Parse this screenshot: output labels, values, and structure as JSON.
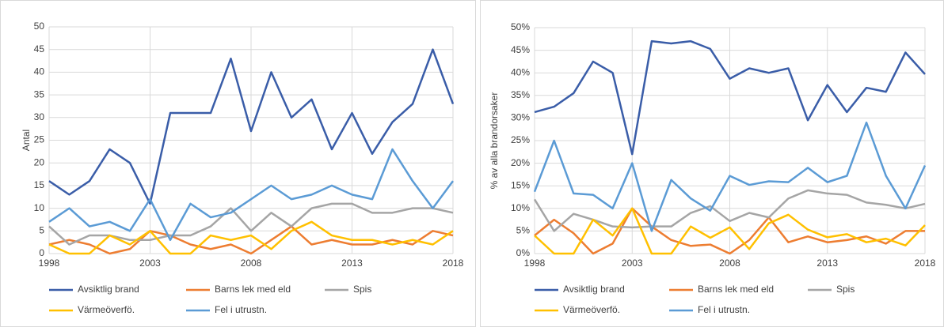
{
  "chart_data": [
    {
      "type": "line",
      "y_label": "Antal",
      "x": [
        1998,
        1999,
        2000,
        2001,
        2002,
        2003,
        2004,
        2005,
        2006,
        2007,
        2008,
        2009,
        2010,
        2011,
        2012,
        2013,
        2014,
        2015,
        2016,
        2017,
        2018
      ],
      "xlim": [
        1998,
        2018
      ],
      "xticks": [
        1998,
        2003,
        2008,
        2013,
        2018
      ],
      "ylim": [
        0,
        50
      ],
      "yticks": [
        0,
        5,
        10,
        15,
        20,
        25,
        30,
        35,
        40,
        45,
        50
      ],
      "grid": true,
      "series": [
        {
          "name": "Avsiktlig brand",
          "color": "#3a5da8",
          "values": [
            16,
            13,
            16,
            23,
            20,
            11,
            31,
            31,
            31,
            43,
            27,
            40,
            30,
            34,
            23,
            31,
            22,
            29,
            33,
            45,
            33
          ]
        },
        {
          "name": "Barns lek med eld",
          "color": "#ed7d31",
          "values": [
            2,
            3,
            2,
            0,
            1,
            5,
            4,
            2,
            1,
            2,
            0,
            3,
            6,
            2,
            3,
            2,
            2,
            3,
            2,
            5,
            4
          ]
        },
        {
          "name": "Spis",
          "color": "#a5a5a5",
          "values": [
            6,
            2,
            4,
            4,
            3,
            3,
            4,
            4,
            6,
            10,
            5,
            9,
            6,
            10,
            11,
            11,
            9,
            9,
            10,
            10,
            9
          ]
        },
        {
          "name": "Värmeöverfö.",
          "color": "#ffc000",
          "values": [
            2,
            0,
            0,
            4,
            2,
            5,
            0,
            0,
            4,
            3,
            4,
            1,
            5,
            7,
            4,
            3,
            3,
            2,
            3,
            2,
            5
          ]
        },
        {
          "name": "Fel i utrustn.",
          "color": "#5b9bd5",
          "values": [
            7,
            10,
            6,
            7,
            5,
            12,
            3,
            11,
            8,
            9,
            12,
            15,
            12,
            13,
            15,
            13,
            12,
            23,
            16,
            10,
            16
          ]
        }
      ]
    },
    {
      "type": "line",
      "y_label": "% av alla brandorsaker",
      "x": [
        1998,
        1999,
        2000,
        2001,
        2002,
        2003,
        2004,
        2005,
        2006,
        2007,
        2008,
        2009,
        2010,
        2011,
        2012,
        2013,
        2014,
        2015,
        2016,
        2017,
        2018
      ],
      "xlim": [
        1998,
        2018
      ],
      "xticks": [
        1998,
        2003,
        2008,
        2013,
        2018
      ],
      "ylim": [
        0,
        50
      ],
      "yticks": [
        {
          "value": 0,
          "label": "0%"
        },
        {
          "value": 5,
          "label": "5%"
        },
        {
          "value": 10,
          "label": "10%"
        },
        {
          "value": 15,
          "label": "15%"
        },
        {
          "value": 20,
          "label": "20%"
        },
        {
          "value": 25,
          "label": "25%"
        },
        {
          "value": 30,
          "label": "30%"
        },
        {
          "value": 35,
          "label": "35%"
        },
        {
          "value": 40,
          "label": "40%"
        },
        {
          "value": 45,
          "label": "45%"
        },
        {
          "value": 50,
          "label": "50%"
        }
      ],
      "grid": true,
      "series": [
        {
          "name": "Avsiktlig brand",
          "color": "#3a5da8",
          "values": [
            31.3,
            32.5,
            35.5,
            42.5,
            40,
            22,
            47,
            46.5,
            47,
            45.3,
            38.7,
            41,
            40,
            41,
            29.5,
            37.3,
            31.3,
            36.7,
            35.8,
            44.5,
            39.7
          ]
        },
        {
          "name": "Barns lek med eld",
          "color": "#ed7d31",
          "values": [
            4,
            7.5,
            4.5,
            0,
            2.2,
            10,
            6,
            3,
            1.7,
            2,
            0,
            3,
            8,
            2.5,
            3.8,
            2.5,
            3,
            3.8,
            2.2,
            5,
            5
          ]
        },
        {
          "name": "Spis",
          "color": "#a5a5a5",
          "values": [
            12,
            5,
            8.8,
            7.5,
            6,
            5.8,
            6,
            6,
            9,
            10.5,
            7.2,
            9,
            8,
            12.2,
            14,
            13.3,
            13,
            11.3,
            10.8,
            10,
            11
          ]
        },
        {
          "name": "Värmeöverfö.",
          "color": "#ffc000",
          "values": [
            4,
            0,
            0,
            7.5,
            4,
            10,
            0,
            0,
            6,
            3.5,
            5.8,
            1,
            6.7,
            8.6,
            5.3,
            3.6,
            4.3,
            2.5,
            3.3,
            1.8,
            6.3
          ]
        },
        {
          "name": "Fel i utrustn.",
          "color": "#5b9bd5",
          "values": [
            13.7,
            25,
            13.3,
            13,
            10,
            20,
            5,
            16.3,
            12.2,
            9.5,
            17.2,
            15.2,
            16,
            15.8,
            19,
            15.8,
            17.2,
            29,
            17.2,
            10,
            19.5
          ]
        }
      ]
    }
  ]
}
